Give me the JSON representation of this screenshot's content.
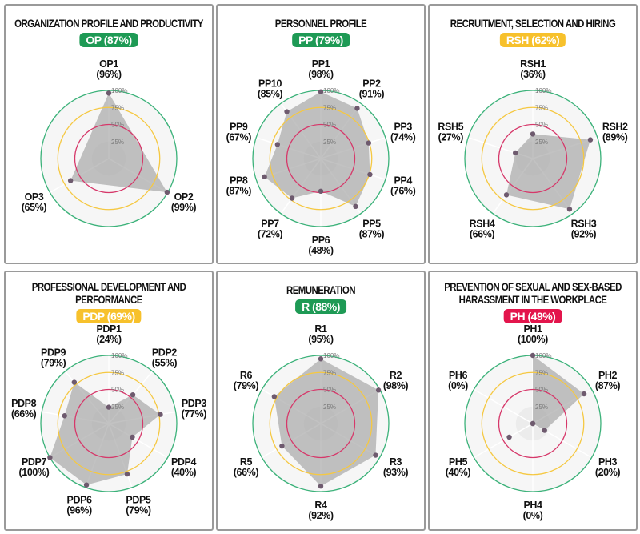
{
  "colors": {
    "green": "#1e9a55",
    "yellow": "#f7c12c",
    "red": "#e3154c",
    "ring_green": "#3cb27a",
    "ring_yellow": "#f5c842",
    "ring_red": "#d6386a",
    "fill": "#a8a8a8",
    "dot": "#6e5a6e"
  },
  "ring_ticks": [
    "100%",
    "75%",
    "50%",
    "25%"
  ],
  "chart_data": [
    {
      "type": "radar",
      "title_lines": [
        "ORGANIZATION PROFILE AND PRODUCTIVITY"
      ],
      "badge": "OP (87%)",
      "badge_color": "green",
      "categories": [
        "OP1",
        "OP2",
        "OP3"
      ],
      "values": [
        96,
        99,
        65
      ],
      "labels": [
        "(96%)",
        "(99%)",
        "(65%)"
      ],
      "rlim": [
        0,
        100
      ]
    },
    {
      "type": "radar",
      "title_lines": [
        "PERSONNEL PROFILE"
      ],
      "badge": "PP (79%)",
      "badge_color": "green",
      "categories": [
        "PP1",
        "PP2",
        "PP3",
        "PP4",
        "PP5",
        "PP6",
        "PP7",
        "PP8",
        "PP9",
        "PP10"
      ],
      "values": [
        98,
        91,
        74,
        76,
        87,
        48,
        72,
        87,
        67,
        85
      ],
      "labels": [
        "(98%)",
        "(91%)",
        "(74%)",
        "(76%)",
        "(87%)",
        "(48%)",
        "(72%)",
        "(87%)",
        "(67%)",
        "(85%)"
      ],
      "rlim": [
        0,
        100
      ]
    },
    {
      "type": "radar",
      "title_lines": [
        "RECRUITMENT, SELECTION AND HIRING"
      ],
      "badge": "RSH (62%)",
      "badge_color": "yellow",
      "categories": [
        "RSH1",
        "RSH2",
        "RSH3",
        "RSH4",
        "RSH5"
      ],
      "values": [
        36,
        89,
        92,
        66,
        27
      ],
      "labels": [
        "(36%)",
        "(89%)",
        "(92%)",
        "(66%)",
        "(27%)"
      ],
      "rlim": [
        0,
        100
      ]
    },
    {
      "type": "radar",
      "title_lines": [
        "PROFESSIONAL DEVELOPMENT AND",
        "PERFORMANCE"
      ],
      "badge": "PDP (69%)",
      "badge_color": "yellow",
      "categories": [
        "PDP1",
        "PDP2",
        "PDP3",
        "PDP4",
        "PDP5",
        "PDP6",
        "PDP7",
        "PDP8",
        "PDP9"
      ],
      "values": [
        24,
        55,
        77,
        40,
        79,
        96,
        100,
        66,
        79
      ],
      "labels": [
        "(24%)",
        "(55%)",
        "(77%)",
        "(40%)",
        "(79%)",
        "(96%)",
        "(100%)",
        "(66%)",
        "(79%)"
      ],
      "rlim": [
        0,
        100
      ]
    },
    {
      "type": "radar",
      "title_lines": [
        "REMUNERATION"
      ],
      "badge": "R (88%)",
      "badge_color": "green",
      "categories": [
        "R1",
        "R2",
        "R3",
        "R4",
        "R5",
        "R6"
      ],
      "values": [
        95,
        98,
        93,
        92,
        66,
        79
      ],
      "labels": [
        "(95%)",
        "(98%)",
        "(93%)",
        "(92%)",
        "(66%)",
        "(79%)"
      ],
      "rlim": [
        0,
        100
      ]
    },
    {
      "type": "radar",
      "title_lines": [
        "PREVENTION OF SEXUAL AND SEX-BASED",
        "HARASSMENT IN THE WORKPLACE"
      ],
      "badge": "PH (49%)",
      "badge_color": "red",
      "categories": [
        "PH1",
        "PH2",
        "PH3",
        "PH4",
        "PH5",
        "PH6"
      ],
      "values": [
        100,
        87,
        20,
        0,
        40,
        0
      ],
      "labels": [
        "(100%)",
        "(87%)",
        "(20%)",
        "(0%)",
        "(40%)",
        "(0%)"
      ],
      "rlim": [
        0,
        100
      ]
    }
  ]
}
